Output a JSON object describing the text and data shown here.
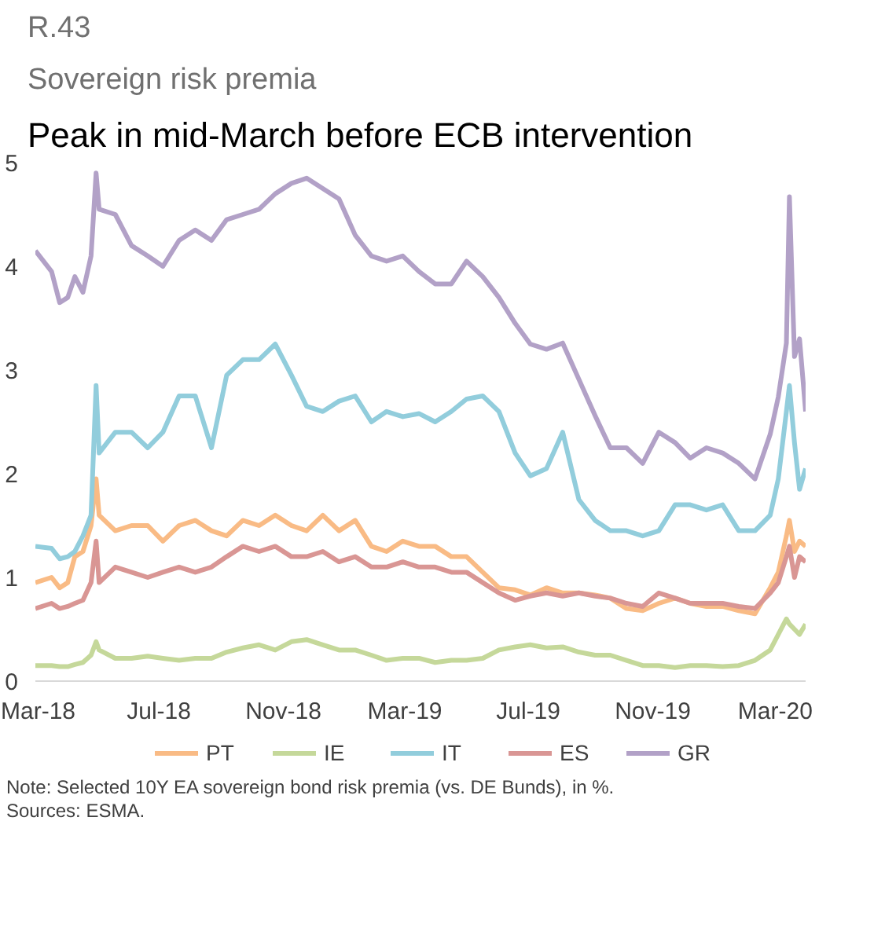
{
  "chart_data": {
    "type": "line",
    "title": "Sovereign risk premia",
    "subtitle": "Peak in mid-March before ECB intervention",
    "annotations": [
      "R.43",
      "Note: Selected 10Y EA sovereign bond risk premia (vs. DE Bunds), in %.",
      "Sources: ESMA."
    ],
    "x": [
      "2018-03-01",
      "2018-03-17",
      "2018-03-25",
      "2018-04-02",
      "2018-04-09",
      "2018-04-17",
      "2018-04-25",
      "2018-04-30",
      "2018-05-03",
      "2018-05-19",
      "2018-06-04",
      "2018-06-20",
      "2018-07-05",
      "2018-07-21",
      "2018-08-06",
      "2018-08-22",
      "2018-09-06",
      "2018-09-22",
      "2018-10-08",
      "2018-10-24",
      "2018-11-09",
      "2018-11-24",
      "2018-12-10",
      "2018-12-26",
      "2019-01-11",
      "2019-01-27",
      "2019-02-11",
      "2019-02-27",
      "2019-03-15",
      "2019-03-31",
      "2019-04-16",
      "2019-05-01",
      "2019-05-17",
      "2019-06-02",
      "2019-06-18",
      "2019-07-03",
      "2019-07-19",
      "2019-08-04",
      "2019-08-20",
      "2019-09-05",
      "2019-09-20",
      "2019-10-06",
      "2019-10-22",
      "2019-11-07",
      "2019-11-23",
      "2019-12-08",
      "2019-12-24",
      "2020-01-09",
      "2020-01-25",
      "2020-02-10",
      "2020-02-25",
      "2020-03-04",
      "2020-03-12",
      "2020-03-15",
      "2020-03-20",
      "2020-03-25",
      "2020-03-31"
    ],
    "series": [
      {
        "name": "PT",
        "color": "#f9bb85",
        "values": [
          0.95,
          1.0,
          0.9,
          0.95,
          1.2,
          1.25,
          1.5,
          1.95,
          1.6,
          1.45,
          1.5,
          1.5,
          1.35,
          1.5,
          1.55,
          1.45,
          1.4,
          1.55,
          1.5,
          1.6,
          1.5,
          1.45,
          1.6,
          1.45,
          1.55,
          1.3,
          1.25,
          1.35,
          1.3,
          1.3,
          1.2,
          1.2,
          1.05,
          0.9,
          0.88,
          0.83,
          0.9,
          0.85,
          0.85,
          0.83,
          0.8,
          0.7,
          0.68,
          0.75,
          0.8,
          0.75,
          0.72,
          0.72,
          0.68,
          0.65,
          0.9,
          1.05,
          1.4,
          1.55,
          1.25,
          1.35,
          1.3
        ]
      },
      {
        "name": "IE",
        "color": "#c5d89a",
        "values": [
          0.15,
          0.15,
          0.14,
          0.14,
          0.16,
          0.18,
          0.25,
          0.38,
          0.3,
          0.22,
          0.22,
          0.24,
          0.22,
          0.2,
          0.22,
          0.22,
          0.28,
          0.32,
          0.35,
          0.3,
          0.38,
          0.4,
          0.35,
          0.3,
          0.3,
          0.25,
          0.2,
          0.22,
          0.22,
          0.18,
          0.2,
          0.2,
          0.22,
          0.3,
          0.33,
          0.35,
          0.32,
          0.33,
          0.28,
          0.25,
          0.25,
          0.2,
          0.15,
          0.15,
          0.13,
          0.15,
          0.15,
          0.14,
          0.15,
          0.2,
          0.3,
          0.45,
          0.6,
          0.55,
          0.5,
          0.45,
          0.55
        ]
      },
      {
        "name": "IT",
        "color": "#92cddc",
        "values": [
          1.3,
          1.28,
          1.18,
          1.2,
          1.25,
          1.4,
          1.6,
          2.85,
          2.2,
          2.4,
          2.4,
          2.25,
          2.4,
          2.75,
          2.75,
          2.25,
          2.95,
          3.1,
          3.1,
          3.25,
          2.95,
          2.65,
          2.6,
          2.7,
          2.75,
          2.5,
          2.6,
          2.55,
          2.58,
          2.5,
          2.6,
          2.72,
          2.75,
          2.6,
          2.2,
          1.98,
          2.05,
          2.4,
          1.75,
          1.55,
          1.45,
          1.45,
          1.4,
          1.45,
          1.7,
          1.7,
          1.65,
          1.7,
          1.45,
          1.45,
          1.6,
          1.95,
          2.6,
          2.85,
          2.3,
          1.85,
          2.05
        ]
      },
      {
        "name": "ES",
        "color": "#d99694",
        "values": [
          0.7,
          0.75,
          0.7,
          0.72,
          0.75,
          0.78,
          0.95,
          1.35,
          0.95,
          1.1,
          1.05,
          1.0,
          1.05,
          1.1,
          1.05,
          1.1,
          1.2,
          1.3,
          1.25,
          1.3,
          1.2,
          1.2,
          1.25,
          1.15,
          1.2,
          1.1,
          1.1,
          1.15,
          1.1,
          1.1,
          1.05,
          1.05,
          0.95,
          0.85,
          0.78,
          0.82,
          0.85,
          0.82,
          0.85,
          0.82,
          0.8,
          0.75,
          0.72,
          0.85,
          0.8,
          0.75,
          0.75,
          0.75,
          0.72,
          0.7,
          0.85,
          0.95,
          1.2,
          1.3,
          1.0,
          1.2,
          1.15
        ]
      },
      {
        "name": "GR",
        "color": "#b2a1c7",
        "values": [
          4.15,
          3.95,
          3.65,
          3.7,
          3.9,
          3.75,
          4.1,
          4.9,
          4.55,
          4.5,
          4.2,
          4.1,
          4.0,
          4.25,
          4.35,
          4.25,
          4.45,
          4.5,
          4.55,
          4.7,
          4.8,
          4.85,
          4.75,
          4.65,
          4.3,
          4.1,
          4.05,
          4.1,
          3.95,
          3.83,
          3.83,
          4.05,
          3.9,
          3.7,
          3.45,
          3.25,
          3.2,
          3.26,
          2.91,
          2.56,
          2.25,
          2.25,
          2.1,
          2.4,
          2.3,
          2.15,
          2.25,
          2.2,
          2.1,
          1.95,
          2.38,
          2.74,
          3.26,
          4.67,
          3.13,
          3.3,
          2.6
        ]
      }
    ],
    "xlim": [
      "2018-03-01",
      "2020-03-31"
    ],
    "xticks": [
      {
        "value": "2018-03-01",
        "label": "Mar-18"
      },
      {
        "value": "2018-07-01",
        "label": "Jul-18"
      },
      {
        "value": "2018-11-01",
        "label": "Nov-18"
      },
      {
        "value": "2019-03-01",
        "label": "Mar-19"
      },
      {
        "value": "2019-07-01",
        "label": "Jul-19"
      },
      {
        "value": "2019-11-01",
        "label": "Nov-19"
      },
      {
        "value": "2020-03-01",
        "label": "Mar-20"
      }
    ],
    "ylim": [
      0,
      5
    ],
    "yticks": [
      0,
      1,
      2,
      3,
      4,
      5
    ],
    "grid": false,
    "legend": "bottom",
    "marker": "none",
    "line_style": "solid"
  }
}
